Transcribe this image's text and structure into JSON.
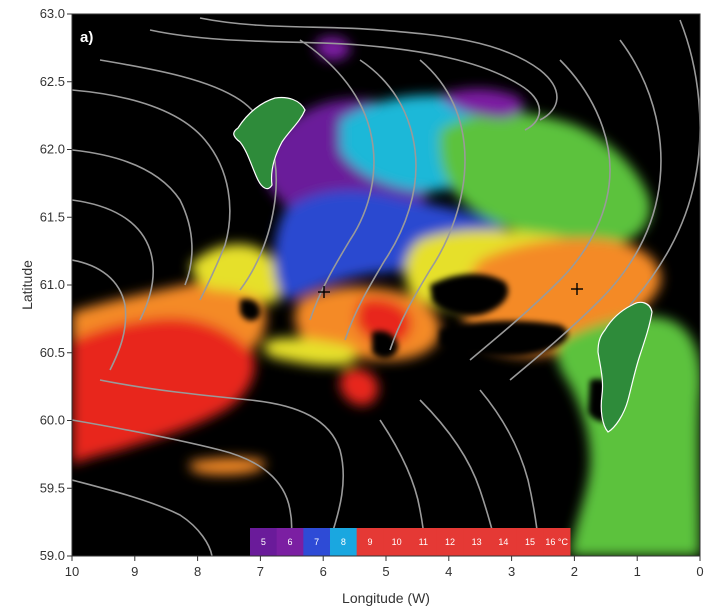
{
  "panel_label": "a)",
  "x_axis": {
    "title": "Longitude (W)",
    "ticks": [
      "10",
      "9",
      "8",
      "7",
      "6",
      "5",
      "4",
      "3",
      "2",
      "1",
      "0"
    ]
  },
  "y_axis": {
    "title": "Latitude",
    "ticks": [
      "63.0",
      "62.5",
      "62.0",
      "61.5",
      "61.0",
      "60.5",
      "60.0",
      "59.5",
      "59.0"
    ]
  },
  "colorbar": {
    "labels": [
      "5",
      "6",
      "7",
      "8",
      "9",
      "10",
      "11",
      "12",
      "13",
      "14",
      "15",
      "16 °C"
    ],
    "colors": [
      "#6a1b9a",
      "#7b1fa2",
      "#2e4bd6",
      "#1aa7e0",
      "#e53935",
      "#e53935",
      "#e53935",
      "#e53935",
      "#e53935",
      "#e53935",
      "#e53935",
      "#e53935"
    ]
  },
  "colors": {
    "background": "#000000",
    "land": "#2e8b3a",
    "contour": "#9a9a9a",
    "warm": "#e8281e",
    "orange": "#f48a28",
    "yellow": "#e6e02a",
    "green": "#5cc23c",
    "cyan": "#1ab8d8",
    "blue": "#2a48d0",
    "purple": "#6a1f9a"
  },
  "chart_data": {
    "type": "heatmap",
    "title": "",
    "xlabel": "Longitude (W)",
    "ylabel": "Latitude",
    "xlim": [
      10,
      0
    ],
    "ylim": [
      59.0,
      63.0
    ],
    "colorbar_range": [
      5,
      16
    ],
    "colorbar_unit": "°C",
    "crosshair_markers": [
      {
        "lon": 5.8,
        "lat": 60.95
      },
      {
        "lon": 1.95,
        "lat": 60.95
      }
    ]
  }
}
